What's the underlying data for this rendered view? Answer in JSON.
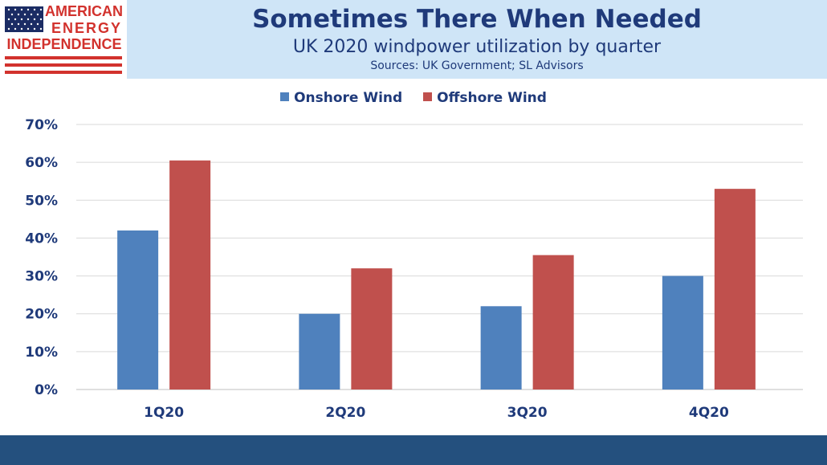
{
  "logo": {
    "line1": "AMERICAN",
    "line2": "ENERGY",
    "line3": "INDEPENDENCE"
  },
  "header": {
    "title": "Sometimes There When Needed",
    "subtitle": "UK 2020 windpower utilization by quarter",
    "source": "Sources: UK Government; SL Advisors"
  },
  "colors": {
    "onshore": "#4f81bd",
    "offshore": "#c0504d",
    "header_band": "#cfe5f7",
    "footer_band": "#24507e",
    "text": "#1f3a7a"
  },
  "chart_data": {
    "type": "bar",
    "categories": [
      "1Q20",
      "2Q20",
      "3Q20",
      "4Q20"
    ],
    "series": [
      {
        "name": "Onshore Wind",
        "values": [
          42,
          20,
          22,
          30
        ]
      },
      {
        "name": "Offshore Wind",
        "values": [
          60.5,
          32,
          35.5,
          53
        ]
      }
    ],
    "y_ticks": [
      "0%",
      "10%",
      "20%",
      "30%",
      "40%",
      "50%",
      "60%",
      "70%"
    ],
    "ylim": [
      0,
      70
    ],
    "grid": true,
    "legend_position": "top"
  }
}
